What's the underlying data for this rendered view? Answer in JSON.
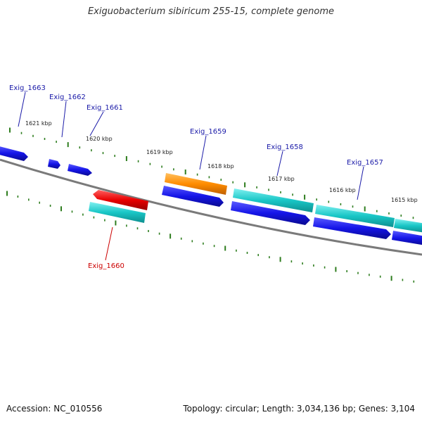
{
  "title": "Exiguobacterium sibiricum 255-15, complete genome",
  "footer": {
    "accession": "Accession: NC_010556",
    "stats": "Topology: circular; Length: 3,034,136 bp; Genes: 3,104"
  },
  "colors": {
    "backbone": "#808080",
    "tick": "#2e7d1e",
    "gene_blue": "#1515e8",
    "gene_cyan": "#19c6c6",
    "gene_orange": "#ff8c00",
    "gene_red": "#e80000",
    "label_blue": "#1a1aa8",
    "label_red": "#cc0000"
  },
  "scale_labels": [
    "1621 kbp",
    "1620 kbp",
    "1619 kbp",
    "1618 kbp",
    "1617 kbp",
    "1616 kbp",
    "1615 kbp"
  ],
  "gene_labels": [
    {
      "name": "Exig_1663",
      "color": "label_blue"
    },
    {
      "name": "Exig_1662",
      "color": "label_blue"
    },
    {
      "name": "Exig_1661",
      "color": "label_blue"
    },
    {
      "name": "Exig_1659",
      "color": "label_blue"
    },
    {
      "name": "Exig_1658",
      "color": "label_blue"
    },
    {
      "name": "Exig_1657",
      "color": "label_blue"
    },
    {
      "name": "Exig_1660",
      "color": "label_red"
    }
  ]
}
